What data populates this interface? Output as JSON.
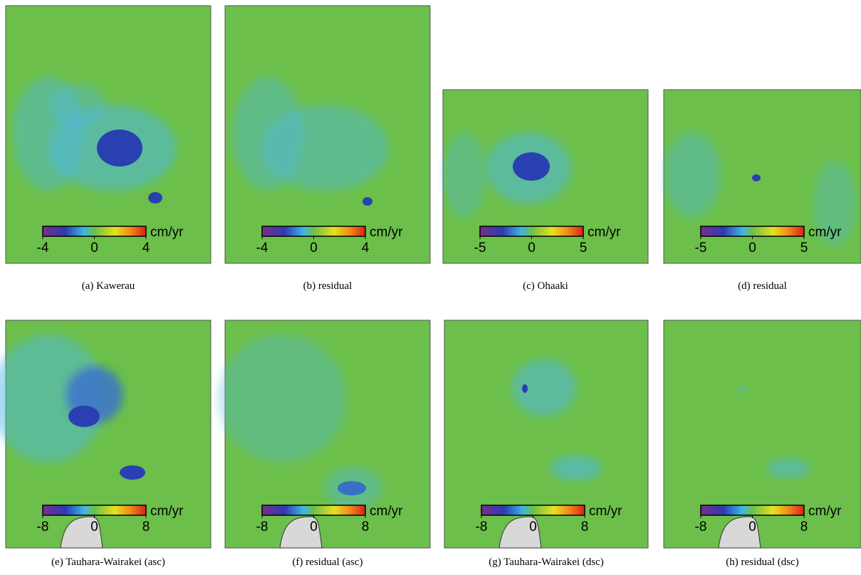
{
  "panels": [
    {
      "caption": "(a)  Kawerau",
      "colorbar": {
        "unit": "cm/yr",
        "ticks": [
          -4,
          0,
          4
        ]
      }
    },
    {
      "caption": "(b)  residual",
      "colorbar": {
        "unit": "cm/yr",
        "ticks": [
          -4,
          0,
          4
        ]
      }
    },
    {
      "caption": "(c)  Ohaaki",
      "colorbar": {
        "unit": "cm/yr",
        "ticks": [
          -5,
          0,
          5
        ]
      }
    },
    {
      "caption": "(d)  residual",
      "colorbar": {
        "unit": "cm/yr",
        "ticks": [
          -5,
          0,
          5
        ]
      }
    },
    {
      "caption": "(e)  Tauhara-Wairakei (asc)",
      "colorbar": {
        "unit": "cm/yr",
        "ticks": [
          -8,
          0,
          8
        ]
      }
    },
    {
      "caption": "(f)  residual (asc)",
      "colorbar": {
        "unit": "cm/yr",
        "ticks": [
          -8,
          0,
          8
        ]
      }
    },
    {
      "caption": "(g)  Tauhara-Wairakei (dsc)",
      "colorbar": {
        "unit": "cm/yr",
        "ticks": [
          -8,
          0,
          8
        ]
      }
    },
    {
      "caption": "(h)  residual (dsc)",
      "colorbar": {
        "unit": "cm/yr",
        "ticks": [
          -8,
          0,
          8
        ]
      }
    }
  ]
}
